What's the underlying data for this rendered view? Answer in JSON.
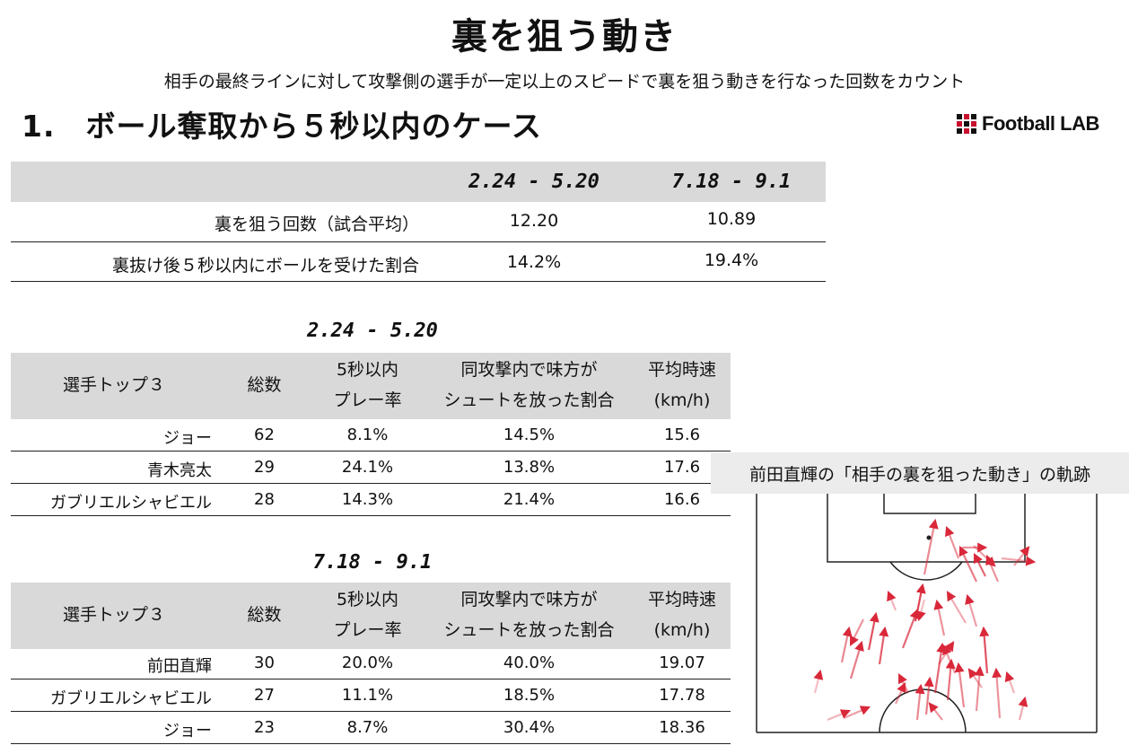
{
  "header": {
    "title": "裏を狙う動き",
    "subtitle": "相手の最終ラインに対して攻撃側の選手が一定以上のスピードで裏を狙う動きを行なった回数をカウント",
    "section": "1.　ボール奪取から５秒以内のケース",
    "logo_text": "Football LAB"
  },
  "summary": {
    "periods": [
      "2.24 - 5.20",
      "7.18 - 9.1"
    ],
    "rows": [
      {
        "label": "裏を狙う回数（試合平均）",
        "p1": "12.20",
        "p2": "10.89"
      },
      {
        "label": "裏抜け後５秒以内にボールを受けた割合",
        "p1": "14.2%",
        "p2": "19.4%"
      }
    ]
  },
  "period_tables": [
    {
      "period": "2.24 - 5.20",
      "headers": {
        "player": "選手トップ３",
        "total": "総数",
        "play_rate": [
          "5秒以内",
          "プレー率"
        ],
        "shot_rate": [
          "同攻撃内で味方が",
          "シュートを放った割合"
        ],
        "speed": [
          "平均時速",
          "(km/h)"
        ]
      },
      "rows": [
        {
          "player": "ジョー",
          "total": "62",
          "play_rate": "8.1%",
          "shot_rate": "14.5%",
          "speed": "15.6"
        },
        {
          "player": "青木亮太",
          "total": "29",
          "play_rate": "24.1%",
          "shot_rate": "13.8%",
          "speed": "17.6"
        },
        {
          "player": "ガブリエルシャビエル",
          "total": "28",
          "play_rate": "14.3%",
          "shot_rate": "21.4%",
          "speed": "16.6"
        }
      ]
    },
    {
      "period": "7.18 - 9.1",
      "headers": {
        "player": "選手トップ３",
        "total": "総数",
        "play_rate": [
          "5秒以内",
          "プレー率"
        ],
        "shot_rate": [
          "同攻撃内で味方が",
          "シュートを放った割合"
        ],
        "speed": [
          "平均時速",
          "(km/h)"
        ]
      },
      "rows": [
        {
          "player": "前田直輝",
          "total": "30",
          "play_rate": "20.0%",
          "shot_rate": "40.0%",
          "speed": "19.07"
        },
        {
          "player": "ガブリエルシャビエル",
          "total": "27",
          "play_rate": "11.1%",
          "shot_rate": "18.5%",
          "speed": "17.78"
        },
        {
          "player": "ジョー",
          "total": "23",
          "play_rate": "8.7%",
          "shot_rate": "30.4%",
          "speed": "18.36"
        }
      ]
    }
  ],
  "pitch": {
    "caption": "前田直輝の「相手の裏を狙った動き」の軌跡",
    "arrow_color": "#d9283a"
  }
}
